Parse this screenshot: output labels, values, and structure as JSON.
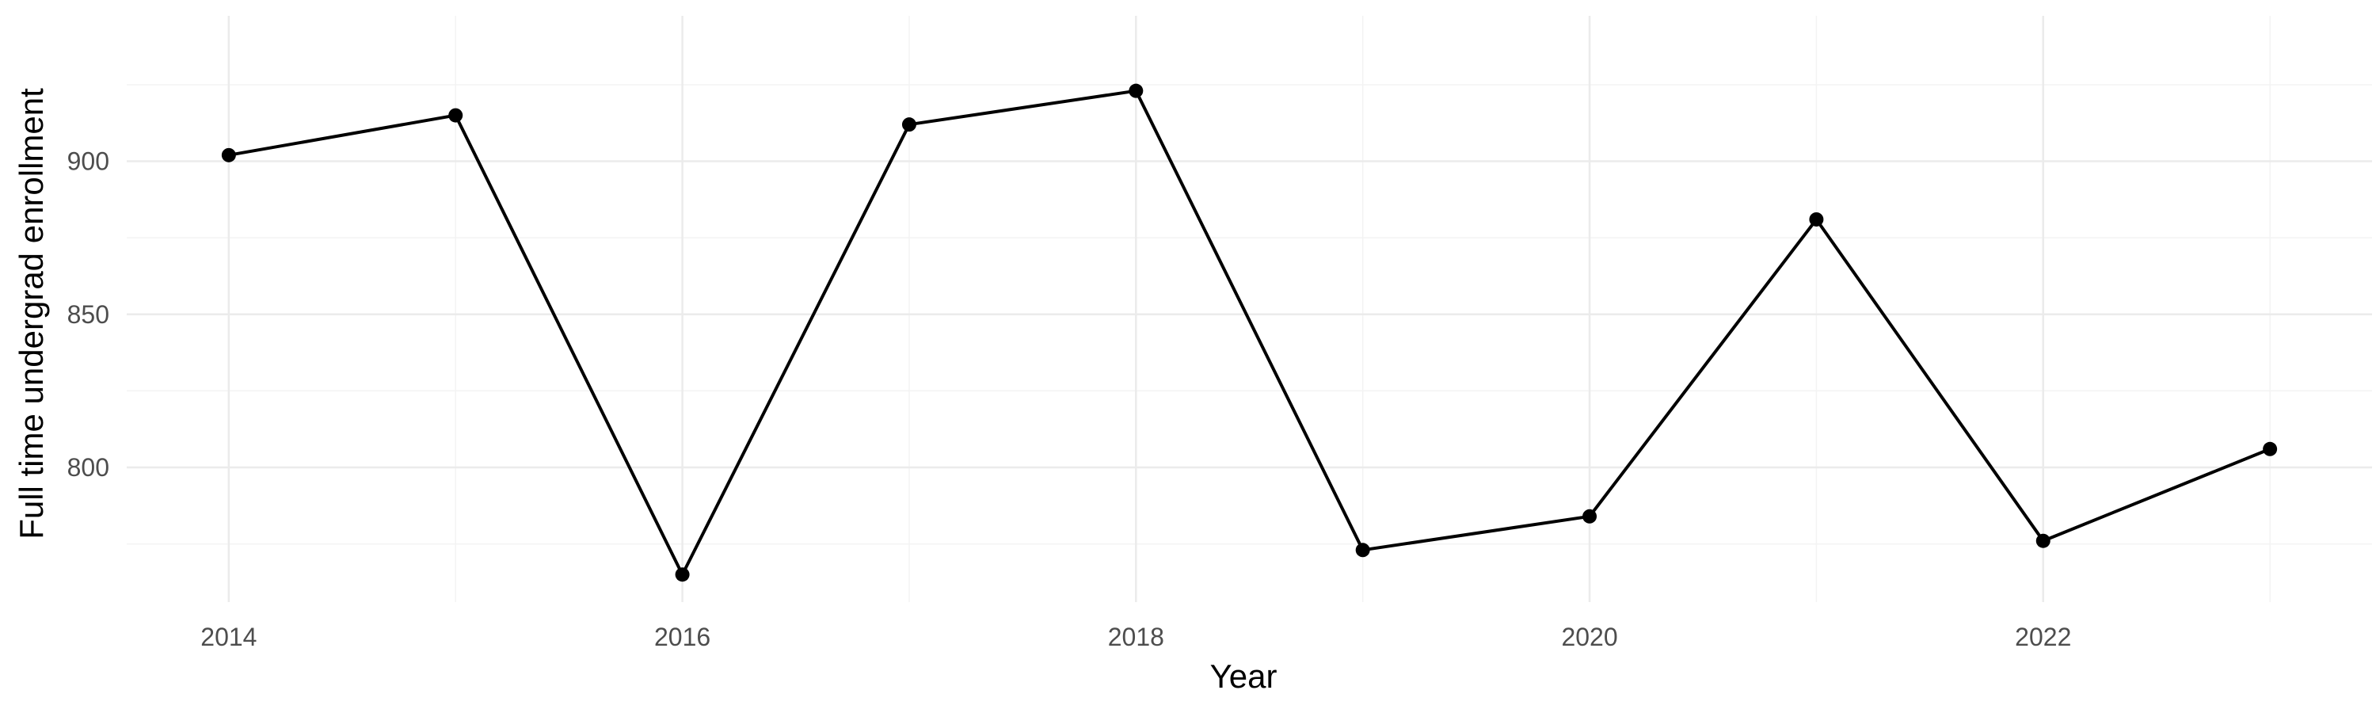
{
  "chart_data": {
    "type": "line",
    "title": "",
    "xlabel": "Year",
    "ylabel": "Full time undergrad enrollment",
    "x": [
      2014,
      2015,
      2016,
      2017,
      2018,
      2019,
      2020,
      2021,
      2022,
      2023
    ],
    "series": [
      {
        "values": [
          902,
          915,
          765,
          912,
          923,
          773,
          784,
          881,
          776,
          806
        ]
      }
    ],
    "xlim": [
      2013.55,
      2023.45
    ],
    "ylim": [
      756,
      947.5
    ],
    "x_ticks": [
      2014,
      2016,
      2018,
      2020,
      2022
    ],
    "x_tick_labels": [
      "2014",
      "2016",
      "2018",
      "2020",
      "2022"
    ],
    "y_ticks": [
      800,
      850,
      900
    ],
    "y_tick_labels": [
      "800",
      "850",
      "900"
    ],
    "grid": true,
    "legend": "none",
    "colors": {
      "line": "#000000",
      "grid": "#ebebeb",
      "tick_text": "#4d4d4d"
    }
  }
}
